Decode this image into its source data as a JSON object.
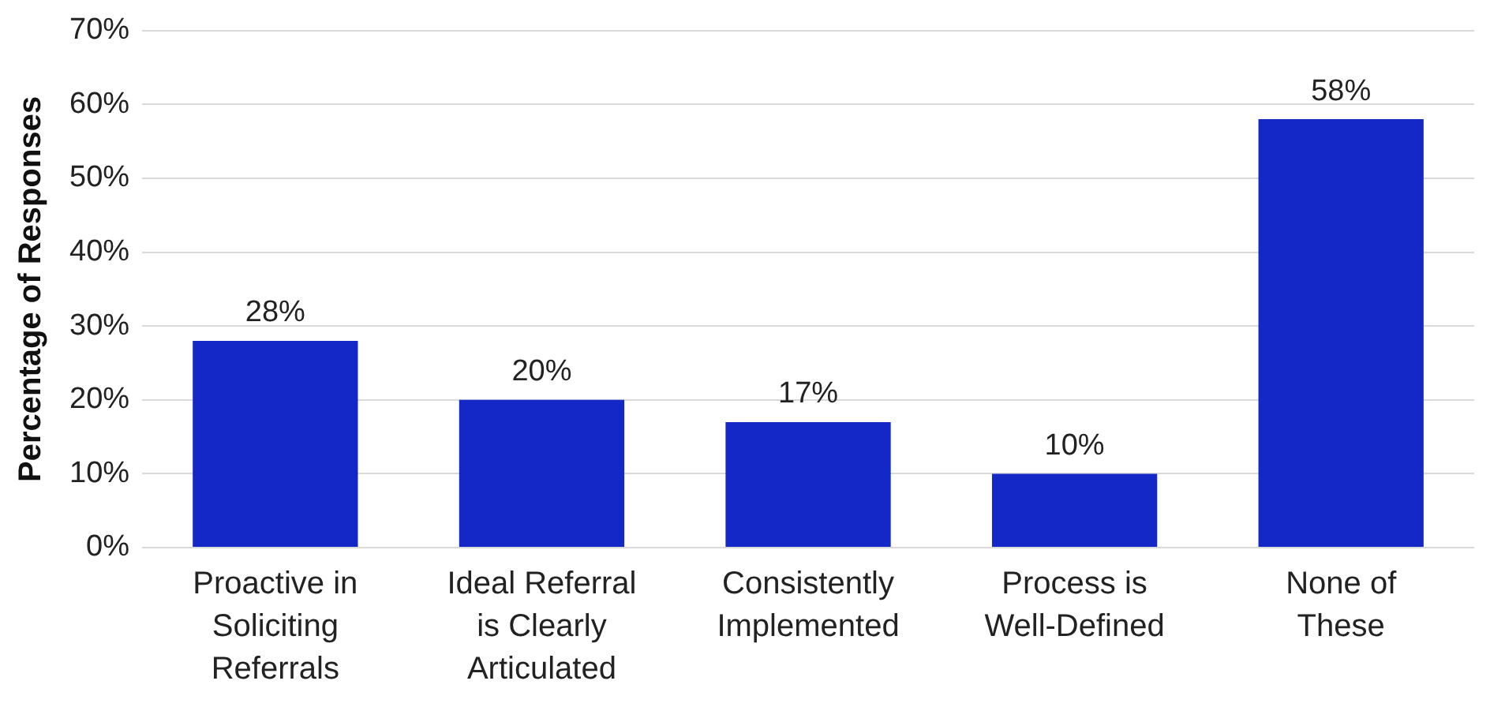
{
  "chart_data": {
    "type": "bar",
    "ylabel": "Percentage of Responses",
    "categories": [
      "Proactive in\nSoliciting\nReferrals",
      "Ideal Referral\nis Clearly\nArticulated",
      "Consistently\nImplemented",
      "Process is\nWell-Defined",
      "None of\nThese"
    ],
    "values": [
      28,
      20,
      17,
      10,
      58
    ],
    "color": "#1428c8",
    "ylim": [
      0,
      70
    ],
    "yticks": [
      {
        "value": 0,
        "label": "0%"
      },
      {
        "value": 10,
        "label": "10%"
      },
      {
        "value": 20,
        "label": "20%"
      },
      {
        "value": 30,
        "label": "30%"
      },
      {
        "value": 40,
        "label": "40%"
      },
      {
        "value": 50,
        "label": "50%"
      },
      {
        "value": 60,
        "label": "60%"
      },
      {
        "value": 70,
        "label": "70%"
      }
    ],
    "value_labels": [
      "28%",
      "20%",
      "17%",
      "10%",
      "58%"
    ],
    "grid": "y",
    "legend": false
  }
}
